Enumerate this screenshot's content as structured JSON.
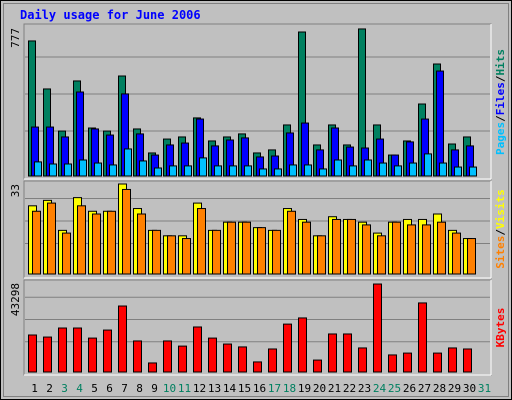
{
  "chart_data": [
    {
      "type": "bar",
      "title": "Daily usage for June 2006",
      "legend_separator": "/",
      "ylim": [
        0,
        777
      ],
      "yticks": [
        777
      ],
      "series": [
        {
          "name": "Hits",
          "color": "#008060",
          "values": [
            709,
            457,
            236,
            499,
            252,
            236,
            525,
            247,
            121,
            194,
            205,
            305,
            184,
            205,
            221,
            121,
            137,
            268,
            756,
            163,
            268,
            163,
            772,
            268,
            110,
            184,
            378,
            588,
            168,
            205,
            0
          ]
        },
        {
          "name": "Files",
          "color": "#0000ff",
          "values": [
            257,
            257,
            205,
            441,
            247,
            215,
            431,
            221,
            110,
            163,
            173,
            299,
            158,
            189,
            200,
            100,
            105,
            226,
            278,
            137,
            252,
            152,
            147,
            194,
            110,
            179,
            299,
            551,
            137,
            158,
            0
          ]
        },
        {
          "name": "Pages",
          "color": "#00c0ff",
          "values": [
            74,
            63,
            63,
            84,
            68,
            58,
            142,
            79,
            42,
            53,
            53,
            95,
            53,
            53,
            53,
            37,
            37,
            58,
            58,
            37,
            84,
            53,
            84,
            68,
            53,
            68,
            116,
            68,
            47,
            47,
            0
          ]
        }
      ]
    },
    {
      "type": "bar",
      "ylim": [
        0,
        33
      ],
      "yticks": [
        33
      ],
      "series": [
        {
          "name": "Visits",
          "color": "#ffff00",
          "values": [
            25,
            27,
            16,
            28,
            23,
            23,
            33,
            24,
            16,
            14,
            14,
            26,
            16,
            19,
            19,
            17,
            16,
            24,
            20,
            14,
            21,
            20,
            19,
            15,
            19,
            20,
            20,
            22,
            16,
            13,
            0
          ]
        },
        {
          "name": "Sites",
          "color": "#ff8000",
          "values": [
            23,
            26,
            15,
            25,
            22,
            23,
            31,
            22,
            16,
            14,
            13,
            24,
            16,
            19,
            19,
            17,
            16,
            23,
            19,
            14,
            20,
            20,
            18,
            14,
            19,
            18,
            18,
            19,
            15,
            13,
            0
          ]
        }
      ]
    },
    {
      "type": "bar",
      "ylim": [
        0,
        43298
      ],
      "yticks": [
        43298
      ],
      "categories": [
        "1",
        "2",
        "3",
        "4",
        "5",
        "6",
        "7",
        "8",
        "9",
        "10",
        "11",
        "12",
        "13",
        "14",
        "15",
        "16",
        "17",
        "18",
        "19",
        "20",
        "21",
        "22",
        "23",
        "24",
        "25",
        "26",
        "27",
        "28",
        "29",
        "30",
        "31"
      ],
      "highlight_categories": [
        "3",
        "4",
        "10",
        "11",
        "17",
        "18",
        "24",
        "25",
        "31"
      ],
      "highlight_color": "#008060",
      "series": [
        {
          "name": "KBytes",
          "color": "#ff0000",
          "values": [
            18000,
            17000,
            21400,
            21400,
            16500,
            20400,
            32100,
            15100,
            4400,
            15100,
            12600,
            21900,
            16500,
            13600,
            12200,
            4900,
            11200,
            23300,
            26300,
            5800,
            18500,
            18500,
            11700,
            42800,
            8300,
            9200,
            33600,
            9200,
            11700,
            11200,
            0
          ]
        }
      ]
    }
  ]
}
